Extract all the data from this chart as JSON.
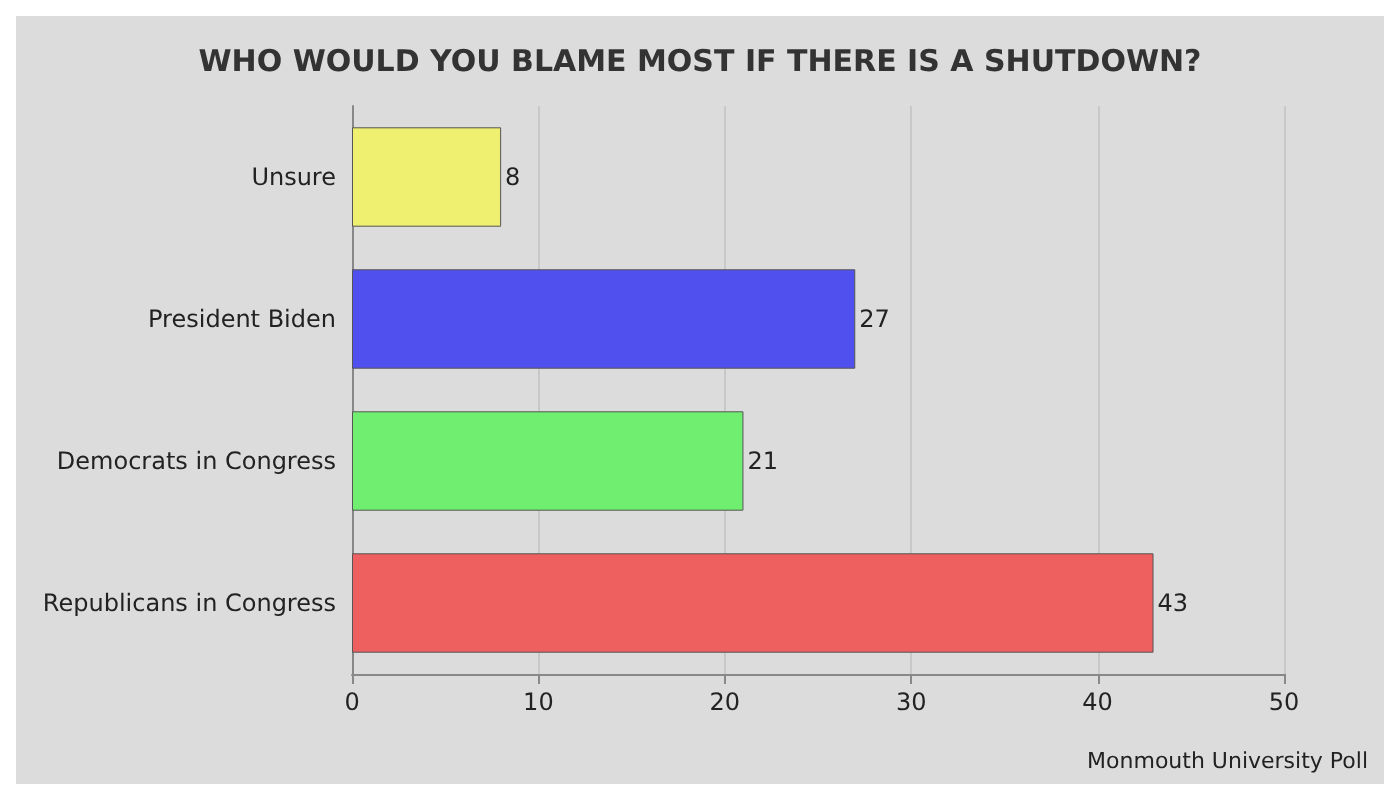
{
  "chart_data": {
    "type": "bar",
    "orientation": "horizontal",
    "title": "WHO WOULD YOU BLAME MOST IF THERE IS A SHUTDOWN?",
    "categories": [
      "Unsure",
      "President Biden",
      "Democrats in Congress",
      "Republicans in Congress"
    ],
    "values": [
      8,
      27,
      21,
      43
    ],
    "colors": [
      "#f0f070",
      "#5050ee",
      "#70ee70",
      "#ee6060"
    ],
    "xlim": [
      0,
      50
    ],
    "xticks": [
      0,
      10,
      20,
      30,
      40,
      50
    ],
    "grid": "x",
    "data_labels": true,
    "annotations": [
      "Monmouth University Poll"
    ]
  }
}
